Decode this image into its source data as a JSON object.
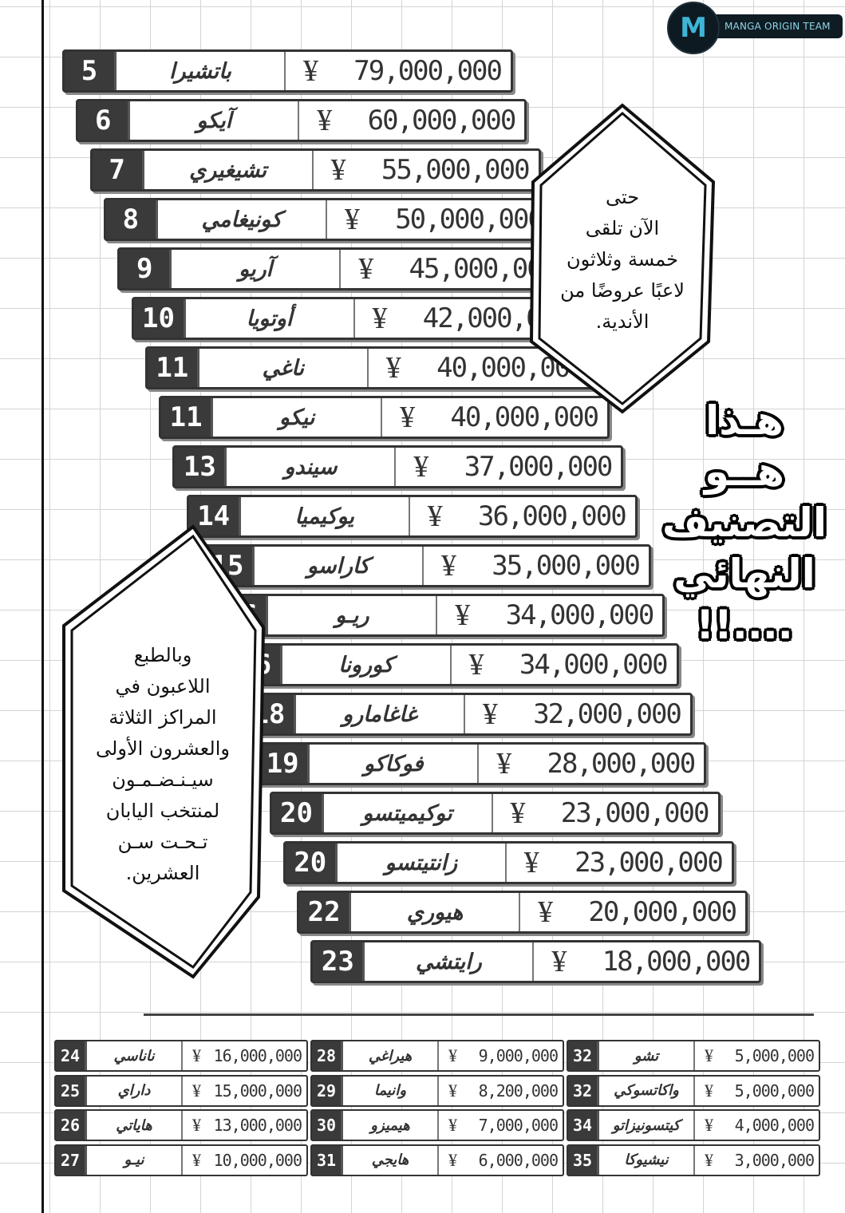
{
  "logo": {
    "text": "MANGA ORIGIN TEAM"
  },
  "currency_symbol": "¥",
  "main_ranking": [
    {
      "rank": "5",
      "name": "باتشيرا",
      "value": "79,000,000"
    },
    {
      "rank": "6",
      "name": "آيكو",
      "value": "60,000,000"
    },
    {
      "rank": "7",
      "name": "تشيغيري",
      "value": "55,000,000"
    },
    {
      "rank": "8",
      "name": "كونيغامي",
      "value": "50,000,000"
    },
    {
      "rank": "9",
      "name": "آريو",
      "value": "45,000,000"
    },
    {
      "rank": "10",
      "name": "أوتويا",
      "value": "42,000,000"
    },
    {
      "rank": "11",
      "name": "ناغي",
      "value": "40,000,000"
    },
    {
      "rank": "11",
      "name": "نيكو",
      "value": "40,000,000"
    },
    {
      "rank": "13",
      "name": "سيندو",
      "value": "37,000,000"
    },
    {
      "rank": "14",
      "name": "يوكيميا",
      "value": "36,000,000"
    },
    {
      "rank": "15",
      "name": "كاراسو",
      "value": "35,000,000"
    },
    {
      "rank": "16",
      "name": "ريـو",
      "value": "34,000,000"
    },
    {
      "rank": "16",
      "name": "كورونا",
      "value": "34,000,000"
    },
    {
      "rank": "18",
      "name": "غاغامارو",
      "value": "32,000,000"
    },
    {
      "rank": "19",
      "name": "فوكاكو",
      "value": "28,000,000"
    },
    {
      "rank": "20",
      "name": "توكيميتسو",
      "value": "23,000,000"
    },
    {
      "rank": "20",
      "name": "زانتيتسو",
      "value": "23,000,000"
    },
    {
      "rank": "22",
      "name": "هيوري",
      "value": "20,000,000"
    },
    {
      "rank": "23",
      "name": "رايتشي",
      "value": "18,000,000"
    }
  ],
  "lower_ranking": [
    [
      {
        "rank": "24",
        "name": "ناناسي",
        "value": "16,000,000"
      },
      {
        "rank": "25",
        "name": "داراي",
        "value": "15,000,000"
      },
      {
        "rank": "26",
        "name": "هاياتي",
        "value": "13,000,000"
      },
      {
        "rank": "27",
        "name": "نيـو",
        "value": "10,000,000"
      }
    ],
    [
      {
        "rank": "28",
        "name": "هيراغي",
        "value": "9,000,000"
      },
      {
        "rank": "29",
        "name": "وانيما",
        "value": "8,200,000"
      },
      {
        "rank": "30",
        "name": "هيميزو",
        "value": "7,000,000"
      },
      {
        "rank": "31",
        "name": "هايجي",
        "value": "6,000,000"
      }
    ],
    [
      {
        "rank": "32",
        "name": "تشو",
        "value": "5,000,000"
      },
      {
        "rank": "32",
        "name": "واكاتسوكي",
        "value": "5,000,000"
      },
      {
        "rank": "34",
        "name": "كيتسونيزاتو",
        "value": "4,000,000"
      },
      {
        "rank": "35",
        "name": "نيشيوكا",
        "value": "3,000,000"
      }
    ]
  ],
  "bubble_top": "حتى\nالآن تلقى\nخمسة وثلاثون\nلاعبًا عروضًا من\nالأندية.",
  "bubble_left": "وبالطبع\nاللاعبون في\nالمراكز الثلاثة\nوالعشرون الأولى\nسيـنـضـمـون\nلمنتخب اليابان\nتـحـت سـن\nالعشرين.",
  "title": "هـذا\nهــو\nالتصنيف\nالنهائي\n....!!"
}
